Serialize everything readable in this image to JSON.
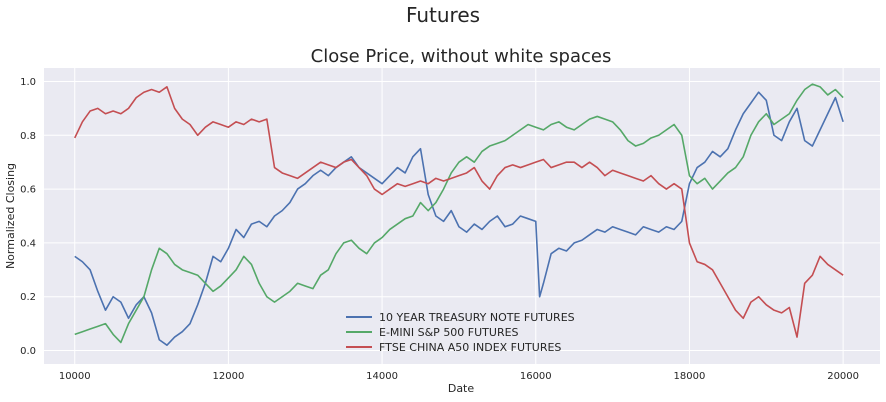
{
  "figure": {
    "suptitle": "Futures"
  },
  "chart_data": {
    "type": "line",
    "title": "Close Price, without white spaces",
    "xlabel": "Date",
    "ylabel": "Normalized Closing",
    "xlim": [
      9600,
      20480
    ],
    "ylim": [
      -0.05,
      1.05
    ],
    "xticks": [
      10000,
      12000,
      14000,
      16000,
      18000,
      20000
    ],
    "yticks": [
      0.0,
      0.2,
      0.4,
      0.6,
      0.8,
      1.0
    ],
    "xtick_labels": [
      "10000",
      "12000",
      "14000",
      "16000",
      "18000",
      "20000"
    ],
    "ytick_labels": [
      "0.0",
      "0.2",
      "0.4",
      "0.6",
      "0.8",
      "1.0"
    ],
    "grid": true,
    "legend_position": "bottom-center",
    "series": [
      {
        "name": "10 YEAR TREASURY NOTE FUTURES",
        "color": "#4c72b0",
        "x": [
          10000,
          10100,
          10200,
          10300,
          10400,
          10500,
          10600,
          10700,
          10800,
          10900,
          11000,
          11100,
          11200,
          11300,
          11400,
          11500,
          11600,
          11700,
          11800,
          11900,
          12000,
          12100,
          12200,
          12300,
          12400,
          12500,
          12600,
          12700,
          12800,
          12900,
          13000,
          13100,
          13200,
          13300,
          13400,
          13500,
          13600,
          13700,
          13800,
          13900,
          14000,
          14100,
          14200,
          14300,
          14400,
          14500,
          14600,
          14700,
          14800,
          14900,
          15000,
          15100,
          15200,
          15300,
          15400,
          15500,
          15600,
          15700,
          15800,
          15900,
          16000,
          16050,
          16100,
          16200,
          16300,
          16400,
          16500,
          16600,
          16700,
          16800,
          16900,
          17000,
          17100,
          17200,
          17300,
          17400,
          17500,
          17600,
          17700,
          17800,
          17900,
          18000,
          18100,
          18200,
          18300,
          18400,
          18500,
          18600,
          18700,
          18800,
          18900,
          19000,
          19100,
          19200,
          19300,
          19400,
          19500,
          19600,
          19700,
          19800,
          19900,
          20000
        ],
        "y": [
          0.35,
          0.33,
          0.3,
          0.22,
          0.15,
          0.2,
          0.18,
          0.12,
          0.17,
          0.2,
          0.14,
          0.04,
          0.02,
          0.05,
          0.07,
          0.1,
          0.17,
          0.25,
          0.35,
          0.33,
          0.38,
          0.45,
          0.42,
          0.47,
          0.48,
          0.46,
          0.5,
          0.52,
          0.55,
          0.6,
          0.62,
          0.65,
          0.67,
          0.65,
          0.68,
          0.7,
          0.72,
          0.68,
          0.66,
          0.64,
          0.62,
          0.65,
          0.68,
          0.66,
          0.72,
          0.75,
          0.58,
          0.5,
          0.48,
          0.52,
          0.46,
          0.44,
          0.47,
          0.45,
          0.48,
          0.5,
          0.46,
          0.47,
          0.5,
          0.49,
          0.48,
          0.2,
          0.25,
          0.36,
          0.38,
          0.37,
          0.4,
          0.41,
          0.43,
          0.45,
          0.44,
          0.46,
          0.45,
          0.44,
          0.43,
          0.46,
          0.45,
          0.44,
          0.46,
          0.45,
          0.48,
          0.62,
          0.68,
          0.7,
          0.74,
          0.72,
          0.75,
          0.82,
          0.88,
          0.92,
          0.96,
          0.93,
          0.8,
          0.78,
          0.85,
          0.9,
          0.78,
          0.76,
          0.82,
          0.88,
          0.94,
          0.85
        ]
      },
      {
        "name": "E-MINI S&P 500 FUTURES",
        "color": "#55a868",
        "x": [
          10000,
          10100,
          10200,
          10300,
          10400,
          10500,
          10600,
          10700,
          10800,
          10900,
          11000,
          11100,
          11200,
          11300,
          11400,
          11500,
          11600,
          11700,
          11800,
          11900,
          12000,
          12100,
          12200,
          12300,
          12400,
          12500,
          12600,
          12700,
          12800,
          12900,
          13000,
          13100,
          13200,
          13300,
          13400,
          13500,
          13600,
          13700,
          13800,
          13900,
          14000,
          14100,
          14200,
          14300,
          14400,
          14500,
          14600,
          14700,
          14800,
          14900,
          15000,
          15100,
          15200,
          15300,
          15400,
          15500,
          15600,
          15700,
          15800,
          15900,
          16000,
          16100,
          16200,
          16300,
          16400,
          16500,
          16600,
          16700,
          16800,
          16900,
          17000,
          17100,
          17200,
          17300,
          17400,
          17500,
          17600,
          17700,
          17800,
          17900,
          18000,
          18100,
          18200,
          18300,
          18400,
          18500,
          18600,
          18700,
          18800,
          18900,
          19000,
          19100,
          19200,
          19300,
          19400,
          19500,
          19600,
          19700,
          19800,
          19900,
          20000
        ],
        "y": [
          0.06,
          0.07,
          0.08,
          0.09,
          0.1,
          0.06,
          0.03,
          0.1,
          0.15,
          0.2,
          0.3,
          0.38,
          0.36,
          0.32,
          0.3,
          0.29,
          0.28,
          0.25,
          0.22,
          0.24,
          0.27,
          0.3,
          0.35,
          0.32,
          0.25,
          0.2,
          0.18,
          0.2,
          0.22,
          0.25,
          0.24,
          0.23,
          0.28,
          0.3,
          0.36,
          0.4,
          0.41,
          0.38,
          0.36,
          0.4,
          0.42,
          0.45,
          0.47,
          0.49,
          0.5,
          0.55,
          0.52,
          0.55,
          0.6,
          0.66,
          0.7,
          0.72,
          0.7,
          0.74,
          0.76,
          0.77,
          0.78,
          0.8,
          0.82,
          0.84,
          0.83,
          0.82,
          0.84,
          0.85,
          0.83,
          0.82,
          0.84,
          0.86,
          0.87,
          0.86,
          0.85,
          0.82,
          0.78,
          0.76,
          0.77,
          0.79,
          0.8,
          0.82,
          0.84,
          0.8,
          0.65,
          0.62,
          0.64,
          0.6,
          0.63,
          0.66,
          0.68,
          0.72,
          0.8,
          0.85,
          0.88,
          0.84,
          0.86,
          0.88,
          0.93,
          0.97,
          0.99,
          0.98,
          0.95,
          0.97,
          0.94
        ]
      },
      {
        "name": "FTSE CHINA A50 INDEX FUTURES",
        "color": "#c44e52",
        "x": [
          10000,
          10100,
          10200,
          10300,
          10400,
          10500,
          10600,
          10700,
          10800,
          10900,
          11000,
          11100,
          11200,
          11300,
          11400,
          11500,
          11600,
          11700,
          11800,
          11900,
          12000,
          12100,
          12200,
          12300,
          12400,
          12500,
          12600,
          12700,
          12800,
          12900,
          13000,
          13100,
          13200,
          13300,
          13400,
          13500,
          13600,
          13700,
          13800,
          13900,
          14000,
          14100,
          14200,
          14300,
          14400,
          14500,
          14600,
          14700,
          14800,
          14900,
          15000,
          15100,
          15200,
          15300,
          15400,
          15500,
          15600,
          15700,
          15800,
          15900,
          16000,
          16100,
          16200,
          16300,
          16400,
          16500,
          16600,
          16700,
          16800,
          16900,
          17000,
          17100,
          17200,
          17300,
          17400,
          17500,
          17600,
          17700,
          17800,
          17900,
          18000,
          18100,
          18200,
          18300,
          18400,
          18500,
          18600,
          18700,
          18800,
          18900,
          19000,
          19100,
          19200,
          19300,
          19400,
          19500,
          19600,
          19700,
          19800,
          19900,
          20000
        ],
        "y": [
          0.79,
          0.85,
          0.89,
          0.9,
          0.88,
          0.89,
          0.88,
          0.9,
          0.94,
          0.96,
          0.97,
          0.96,
          0.98,
          0.9,
          0.86,
          0.84,
          0.8,
          0.83,
          0.85,
          0.84,
          0.83,
          0.85,
          0.84,
          0.86,
          0.85,
          0.86,
          0.68,
          0.66,
          0.65,
          0.64,
          0.66,
          0.68,
          0.7,
          0.69,
          0.68,
          0.7,
          0.71,
          0.68,
          0.65,
          0.6,
          0.58,
          0.6,
          0.62,
          0.61,
          0.62,
          0.63,
          0.62,
          0.64,
          0.63,
          0.64,
          0.65,
          0.66,
          0.68,
          0.63,
          0.6,
          0.65,
          0.68,
          0.69,
          0.68,
          0.69,
          0.7,
          0.71,
          0.68,
          0.69,
          0.7,
          0.7,
          0.68,
          0.7,
          0.68,
          0.65,
          0.67,
          0.66,
          0.65,
          0.64,
          0.63,
          0.65,
          0.62,
          0.6,
          0.62,
          0.6,
          0.4,
          0.33,
          0.32,
          0.3,
          0.25,
          0.2,
          0.15,
          0.12,
          0.18,
          0.2,
          0.17,
          0.15,
          0.14,
          0.16,
          0.05,
          0.25,
          0.28,
          0.35,
          0.32,
          0.3,
          0.28
        ]
      }
    ]
  }
}
